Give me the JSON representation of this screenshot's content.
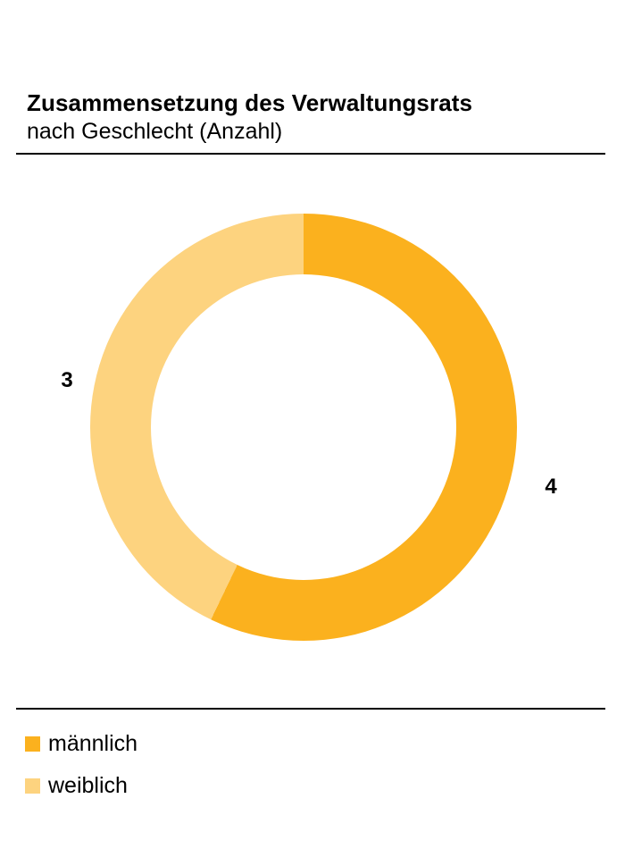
{
  "header": {
    "title": "Zusammensetzung des Verwaltungsrats",
    "subtitle": "nach Geschlecht (Anzahl)"
  },
  "chart_data": {
    "type": "pie",
    "variant": "donut",
    "title": "Zusammensetzung des Verwaltungsrats",
    "subtitle": "nach Geschlecht (Anzahl)",
    "categories": [
      "männlich",
      "weiblich"
    ],
    "values": [
      4,
      3
    ],
    "total": 7,
    "unit": "Anzahl",
    "colors": [
      "#FBB11E",
      "#FDD37F"
    ],
    "start_angle_deg": 0,
    "direction": "clockwise",
    "value_labels": {
      "right": "4",
      "left": "3"
    },
    "legend_position": "bottom",
    "grid": false
  },
  "legend": {
    "items": [
      {
        "label": "männlich",
        "color": "#FBB11E"
      },
      {
        "label": "weiblich",
        "color": "#FDD37F"
      }
    ]
  }
}
